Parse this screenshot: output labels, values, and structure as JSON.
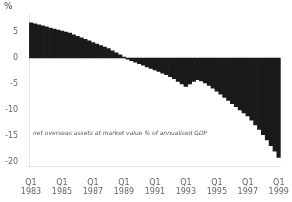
{
  "chart_data": {
    "type": "bar",
    "ylabel": "%",
    "annotation": "net overseas assets at market value % of annualised GDP",
    "categories": [
      "Q1\n1983",
      null,
      null,
      null,
      null,
      null,
      null,
      null,
      "Q1\n1985",
      null,
      null,
      null,
      null,
      null,
      null,
      null,
      "Q1\n1987",
      null,
      null,
      null,
      null,
      null,
      null,
      null,
      "Q1\n1989",
      null,
      null,
      null,
      null,
      null,
      null,
      null,
      "Q1\n1991",
      null,
      null,
      null,
      null,
      null,
      null,
      null,
      "Q1\n1993",
      null,
      null,
      null,
      null,
      null,
      null,
      null,
      "Q1\n1995",
      null,
      null,
      null,
      null,
      null,
      null,
      null,
      "Q1\n1997",
      null,
      null,
      null,
      null,
      null,
      null,
      null,
      "Q1\n1999"
    ],
    "values": [
      6.8,
      6.6,
      6.4,
      6.2,
      6.0,
      5.8,
      5.6,
      5.4,
      5.2,
      5.0,
      4.8,
      4.5,
      4.2,
      3.9,
      3.6,
      3.3,
      3.0,
      2.7,
      2.4,
      2.1,
      1.8,
      1.4,
      1.0,
      0.6,
      0.2,
      -0.2,
      -0.5,
      -0.8,
      -1.1,
      -1.4,
      -1.7,
      -2.0,
      -2.3,
      -2.6,
      -2.9,
      -3.2,
      -3.6,
      -4.0,
      -4.5,
      -5.0,
      -5.5,
      -5.0,
      -4.5,
      -4.2,
      -4.4,
      -4.8,
      -5.3,
      -5.8,
      -6.4,
      -7.0,
      -7.6,
      -8.2,
      -8.8,
      -9.4,
      -10.0,
      -10.6,
      -11.2,
      -12.0,
      -12.9,
      -13.8,
      -14.8,
      -15.8,
      -16.9,
      -18.0,
      -19.2
    ],
    "color": "#1a1a1a",
    "ylim": [
      -21.0,
      8.5
    ],
    "yticks": [
      5.0,
      0.0,
      -5.0,
      -10.0,
      -15.0,
      -20.0
    ],
    "grid": false
  }
}
